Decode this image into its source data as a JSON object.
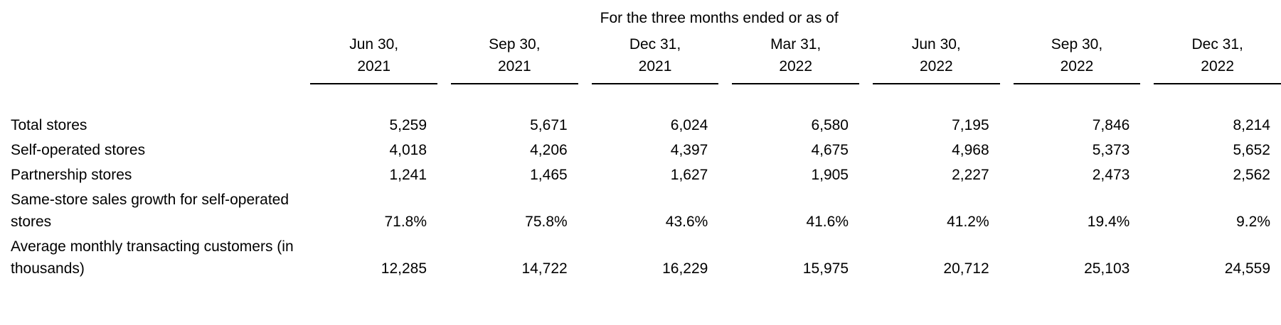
{
  "page": {
    "background_color": "#ffffff",
    "text_color": "#000000",
    "rule_color": "#000000"
  },
  "table": {
    "title": "For the three months ended or as of",
    "columns": [
      {
        "date": "Jun 30,",
        "year": "2021"
      },
      {
        "date": "Sep 30,",
        "year": "2021"
      },
      {
        "date": "Dec 31,",
        "year": "2021"
      },
      {
        "date": "Mar 31,",
        "year": "2022"
      },
      {
        "date": "Jun 30,",
        "year": "2022"
      },
      {
        "date": "Sep 30,",
        "year": "2022"
      },
      {
        "date": "Dec 31,",
        "year": "2022"
      }
    ],
    "rows": [
      {
        "label": "Total stores",
        "values": [
          "5,259",
          "5,671",
          "6,024",
          "6,580",
          "7,195",
          "7,846",
          "8,214"
        ]
      },
      {
        "label": "Self-operated stores",
        "values": [
          "4,018",
          "4,206",
          "4,397",
          "4,675",
          "4,968",
          "5,373",
          "5,652"
        ]
      },
      {
        "label": "Partnership stores",
        "values": [
          "1,241",
          "1,465",
          "1,627",
          "1,905",
          "2,227",
          "2,473",
          "2,562"
        ]
      },
      {
        "label": "Same-store sales growth for self-operated\nstores",
        "values": [
          "71.8%",
          "75.8%",
          "43.6%",
          "41.6%",
          "41.2%",
          "19.4%",
          "9.2%"
        ]
      },
      {
        "label": "Average monthly transacting customers (in\nthousands)",
        "values": [
          "12,285",
          "14,722",
          "16,229",
          "15,975",
          "20,712",
          "25,103",
          "24,559"
        ]
      }
    ]
  }
}
